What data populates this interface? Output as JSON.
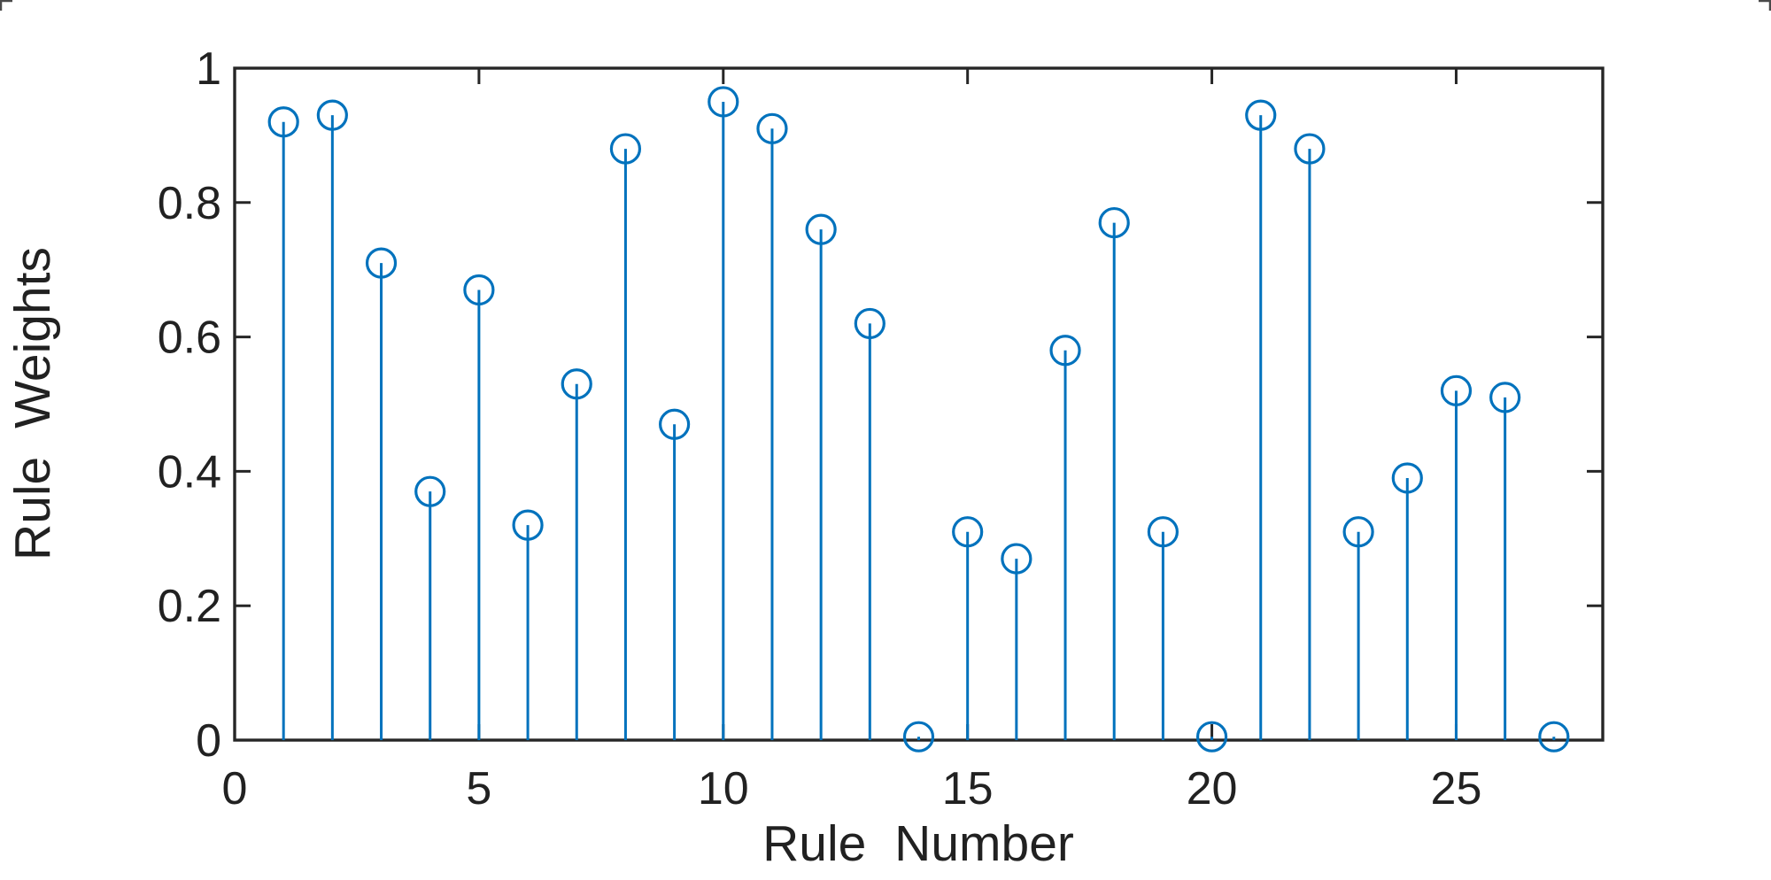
{
  "chart_data": {
    "type": "stem",
    "title": "",
    "xlabel": "Rule Number",
    "ylabel": "Rule Weights",
    "x": [
      1,
      2,
      3,
      4,
      5,
      6,
      7,
      8,
      9,
      10,
      11,
      12,
      13,
      14,
      15,
      16,
      17,
      18,
      19,
      20,
      21,
      22,
      23,
      24,
      25,
      26,
      27
    ],
    "values": [
      0.92,
      0.93,
      0.71,
      0.37,
      0.67,
      0.32,
      0.53,
      0.88,
      0.47,
      0.95,
      0.91,
      0.76,
      0.62,
      0.005,
      0.31,
      0.27,
      0.58,
      0.77,
      0.31,
      0.005,
      0.93,
      0.88,
      0.31,
      0.39,
      0.52,
      0.51,
      0.005
    ],
    "xlim": [
      0,
      28
    ],
    "ylim": [
      0,
      1
    ],
    "x_ticks": [
      0,
      5,
      10,
      15,
      20,
      25
    ],
    "x_tick_labels": [
      "0",
      "5",
      "10",
      "15",
      "20",
      "25"
    ],
    "y_ticks": [
      0,
      0.2,
      0.4,
      0.6,
      0.8,
      1
    ],
    "y_tick_labels": [
      "0",
      "0.2",
      "0.4",
      "0.6",
      "0.8",
      "1"
    ],
    "grid": false,
    "legend_position": "none",
    "marker": "open-circle",
    "stem_color": "#0072BD",
    "axis_color": "#262626",
    "text_color": "#212121",
    "background_color": "#ffffff"
  }
}
